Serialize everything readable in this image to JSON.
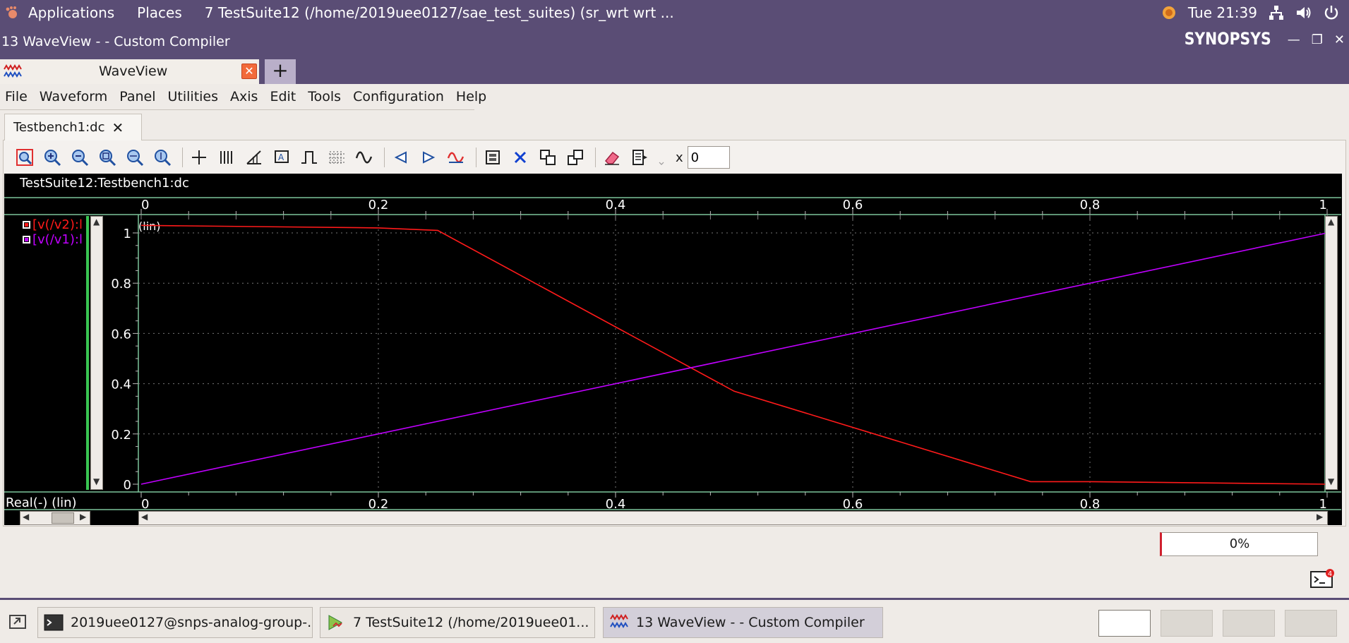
{
  "top_panel": {
    "applications": "Applications",
    "places": "Places",
    "window_title": "7 TestSuite12 (/home/2019uee0127/sae_test_suites) (sr_wrt wrt ...",
    "clock": "Tue 21:39"
  },
  "window": {
    "title": "13 WaveView -  - Custom Compiler",
    "brand": "SYNOPSYS"
  },
  "workspace_tab": {
    "label": "WaveView"
  },
  "menu": [
    "File",
    "Waveform",
    "Panel",
    "Utilities",
    "Axis",
    "Edit",
    "Tools",
    "Configuration",
    "Help"
  ],
  "doc_tab": {
    "label": "Testbench1:dc"
  },
  "toolbar": {
    "x_label": "x",
    "x_value": "0"
  },
  "wave_panel": {
    "header": "TestSuite12:Testbench1:dc",
    "scale_tag": "(lin)",
    "x_axis_info": "Real(-) (lin)",
    "legend": [
      {
        "label": "[v(/v2):l",
        "color": "#ff1a1a"
      },
      {
        "label": "[v(/v1):l",
        "color": "#c000ff"
      }
    ]
  },
  "chart_data": {
    "type": "line",
    "x_ticks": [
      "0",
      "0.2",
      "0.4",
      "0.6",
      "0.8",
      "1"
    ],
    "y_ticks": [
      "0",
      "0.2",
      "0.4",
      "0.6",
      "0.8",
      "1"
    ],
    "xlim": [
      0,
      1
    ],
    "ylim": [
      0,
      1
    ],
    "grid": true,
    "series": [
      {
        "name": "[v(/v2):l",
        "color": "#ff1a1a",
        "x": [
          0,
          0.2,
          0.25,
          0.5,
          0.75,
          0.8,
          1
        ],
        "y": [
          1.03,
          1.02,
          1.01,
          0.37,
          0.01,
          0.01,
          0.0
        ]
      },
      {
        "name": "[v(/v1):l",
        "color": "#c000ff",
        "x": [
          0,
          1
        ],
        "y": [
          0,
          1
        ]
      }
    ]
  },
  "progress": {
    "value": "0%"
  },
  "console_badge": "4",
  "taskbar": [
    {
      "label": "2019uee0127@snps-analog-group-..."
    },
    {
      "label": "7 TestSuite12 (/home/2019uee01..."
    },
    {
      "label": "13 WaveView -  - Custom Compiler"
    }
  ]
}
